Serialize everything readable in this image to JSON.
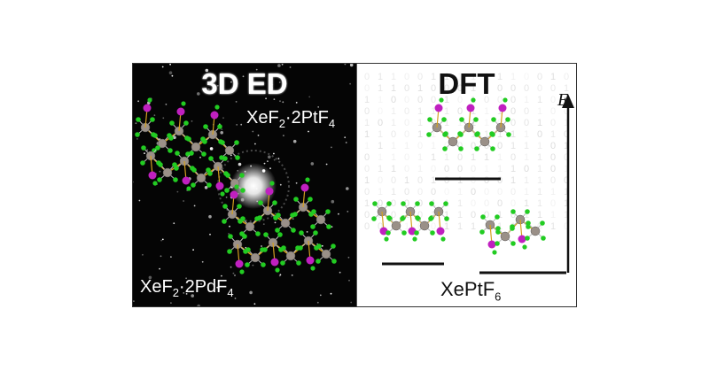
{
  "left_panel": {
    "title": "3D ED",
    "formula_top": {
      "base": "XeF",
      "s1": "2",
      "mid": "·2PtF",
      "s2": "4"
    },
    "formula_bottom": {
      "base": "XeF",
      "s1": "2",
      "mid": "·2PdF",
      "s2": "4"
    }
  },
  "right_panel": {
    "title": "DFT",
    "formula": {
      "base": "XePtF",
      "s1": "6"
    },
    "axis_label": "E"
  },
  "colors": {
    "xe_atom": "#c020c0",
    "f_atom": "#22cc22",
    "metal_atom": "#9a9088",
    "bond": "#d4a020",
    "background_dark": "#050505"
  }
}
